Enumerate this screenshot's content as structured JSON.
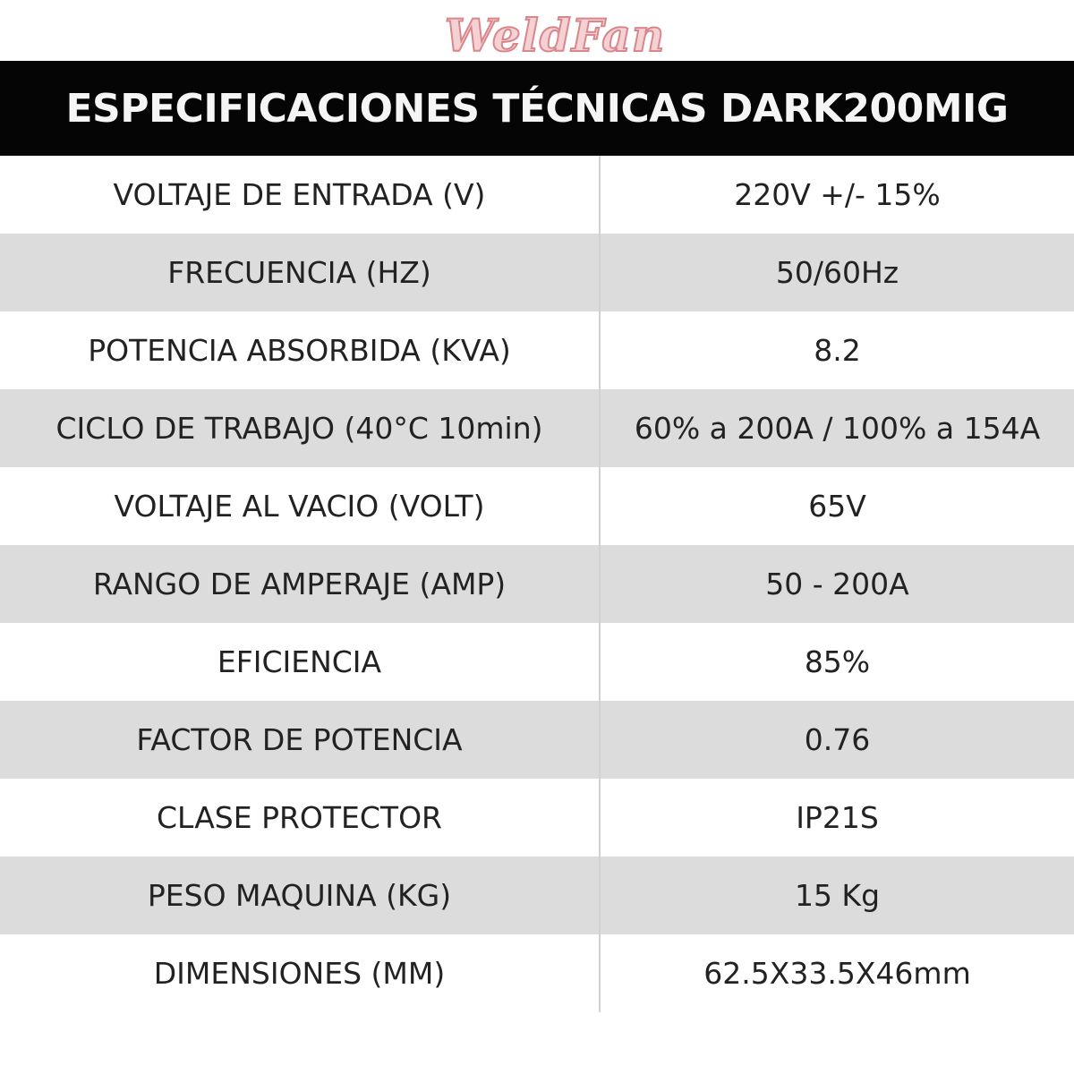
{
  "brand": {
    "logo_text": "WeldFan",
    "logo_color": "#f4d2d4",
    "logo_outline": "#d9868c"
  },
  "table": {
    "title": "ESPECIFICACIONES TÉCNICAS DARK200MIG",
    "header_bg": "#050505",
    "stripe_color": "#dcdcdc",
    "rows": [
      {
        "label": "VOLTAJE DE ENTRADA (V)",
        "value": "220V +/- 15%"
      },
      {
        "label": "FRECUENCIA (HZ)",
        "value": "50/60Hz"
      },
      {
        "label": "POTENCIA ABSORBIDA (KVA)",
        "value": "8.2"
      },
      {
        "label": "CICLO DE TRABAJO (40°C 10min)",
        "value": "60% a 200A / 100% a 154A"
      },
      {
        "label": "VOLTAJE AL VACIO (VOLT)",
        "value": "65V"
      },
      {
        "label": "RANGO DE AMPERAJE (AMP)",
        "value": "50 - 200A"
      },
      {
        "label": "EFICIENCIA",
        "value": "85%"
      },
      {
        "label": "FACTOR DE POTENCIA",
        "value": "0.76"
      },
      {
        "label": "CLASE PROTECTOR",
        "value": "IP21S"
      },
      {
        "label": "PESO MAQUINA (KG)",
        "value": "15 Kg"
      },
      {
        "label": "DIMENSIONES (MM)",
        "value": "62.5X33.5X46mm"
      }
    ]
  }
}
